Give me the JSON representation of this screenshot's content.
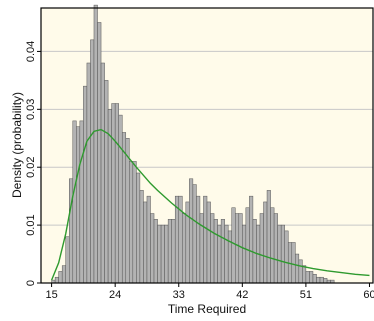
{
  "chart_data": {
    "type": "bar",
    "xlabel": "Time Required",
    "ylabel": "Density (probability)",
    "xlim": [
      13.5,
      60.5
    ],
    "ylim": [
      0,
      0.0475
    ],
    "x_ticks": [
      15,
      24,
      33,
      42,
      51,
      60
    ],
    "x_tick_labels": [
      "15",
      "24",
      "33",
      "42",
      "51",
      "60"
    ],
    "y_ticks": [
      0,
      0.01,
      0.02,
      0.03,
      0.04
    ],
    "y_tick_labels": [
      "0",
      "0.01",
      "0.02",
      "0.03",
      "0.04"
    ],
    "grid": true,
    "plot_background": "#fffbea",
    "bar_color": "#b3b3b3",
    "bar_edge_color": "#555555",
    "curve_color": "#2e9a2e",
    "bin_width": 0.5,
    "bin_start": 15.0,
    "histogram": [
      0.0005,
      0.001,
      0.002,
      0.003,
      0.008,
      0.018,
      0.028,
      0.027,
      0.028,
      0.034,
      0.038,
      0.042,
      0.048,
      0.045,
      0.038,
      0.035,
      0.03,
      0.031,
      0.031,
      0.029,
      0.026,
      0.025,
      0.021,
      0.021,
      0.019,
      0.016,
      0.014,
      0.015,
      0.012,
      0.011,
      0.01,
      0.01,
      0.01,
      0.011,
      0.011,
      0.015,
      0.015,
      0.012,
      0.014,
      0.018,
      0.017,
      0.015,
      0.012,
      0.015,
      0.014,
      0.012,
      0.011,
      0.01,
      0.011,
      0.01,
      0.009,
      0.013,
      0.012,
      0.012,
      0.01,
      0.013,
      0.015,
      0.011,
      0.01,
      0.012,
      0.014,
      0.016,
      0.013,
      0.012,
      0.01,
      0.01,
      0.009,
      0.007,
      0.007,
      0.005,
      0.004,
      0.003,
      0.002,
      0.002,
      0.0015,
      0.001,
      0.001,
      0.0008,
      0.0005,
      0.0005
    ],
    "fit_curve": {
      "name": "",
      "x": [
        15,
        16,
        17,
        18,
        19,
        20,
        21,
        22,
        23,
        24,
        25,
        26,
        27,
        28,
        29,
        30,
        32,
        34,
        36,
        38,
        40,
        42,
        44,
        46,
        48,
        50,
        52,
        54,
        56,
        58,
        60
      ],
      "y": [
        0.0005,
        0.0035,
        0.0085,
        0.015,
        0.0205,
        0.0245,
        0.0262,
        0.0265,
        0.0258,
        0.0245,
        0.023,
        0.0215,
        0.02,
        0.0186,
        0.0172,
        0.016,
        0.0138,
        0.0118,
        0.0101,
        0.0086,
        0.0073,
        0.0061,
        0.0051,
        0.0043,
        0.0036,
        0.003,
        0.0025,
        0.0021,
        0.0018,
        0.0015,
        0.0013
      ]
    }
  }
}
